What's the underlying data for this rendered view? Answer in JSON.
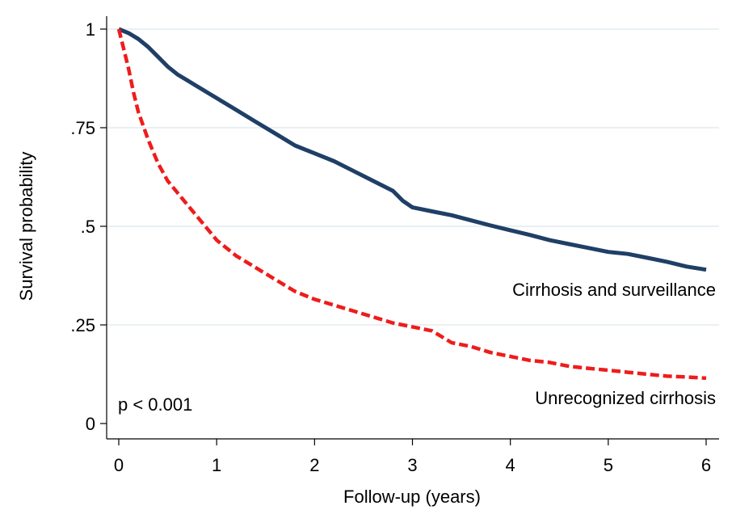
{
  "chart_data": {
    "type": "line",
    "xlabel": "Follow-up (years)",
    "ylabel": "Survival probability",
    "xlim": [
      0,
      6
    ],
    "ylim": [
      0,
      1
    ],
    "xticks": [
      0,
      1,
      2,
      3,
      4,
      5,
      6
    ],
    "xtick_labels": [
      "0",
      "1",
      "2",
      "3",
      "4",
      "5",
      "6"
    ],
    "yticks": [
      0,
      0.25,
      0.5,
      0.75,
      1
    ],
    "ytick_labels": [
      "0",
      ".25",
      ".5",
      ".75",
      "1"
    ],
    "grid": "horizontal",
    "legend": "none",
    "annotations": {
      "p_value": "p < 0.001"
    },
    "series": [
      {
        "name": "Cirrhosis and surveillance",
        "color": "#1f3f66",
        "style": "solid",
        "x": [
          0,
          0.1,
          0.2,
          0.3,
          0.4,
          0.5,
          0.6,
          0.7,
          0.8,
          0.9,
          1.0,
          1.2,
          1.4,
          1.6,
          1.8,
          2.0,
          2.2,
          2.4,
          2.6,
          2.8,
          2.9,
          3.0,
          3.2,
          3.4,
          3.6,
          3.8,
          4.0,
          4.2,
          4.4,
          4.6,
          4.8,
          5.0,
          5.2,
          5.4,
          5.6,
          5.8,
          6.0
        ],
        "y": [
          1.0,
          0.99,
          0.975,
          0.955,
          0.93,
          0.905,
          0.885,
          0.87,
          0.855,
          0.84,
          0.825,
          0.795,
          0.765,
          0.735,
          0.705,
          0.685,
          0.665,
          0.64,
          0.615,
          0.59,
          0.565,
          0.548,
          0.538,
          0.528,
          0.515,
          0.502,
          0.49,
          0.478,
          0.465,
          0.455,
          0.445,
          0.435,
          0.43,
          0.42,
          0.41,
          0.398,
          0.39
        ]
      },
      {
        "name": "Unrecognized cirrhosis",
        "color": "#ee1c1c",
        "style": "dashed",
        "x": [
          0,
          0.05,
          0.1,
          0.15,
          0.2,
          0.3,
          0.4,
          0.5,
          0.6,
          0.7,
          0.8,
          0.9,
          1.0,
          1.2,
          1.4,
          1.6,
          1.8,
          2.0,
          2.2,
          2.4,
          2.6,
          2.8,
          3.0,
          3.2,
          3.4,
          3.6,
          3.8,
          4.0,
          4.2,
          4.4,
          4.6,
          4.8,
          5.0,
          5.2,
          5.4,
          5.6,
          5.8,
          6.0
        ],
        "y": [
          1.0,
          0.95,
          0.9,
          0.84,
          0.79,
          0.72,
          0.66,
          0.615,
          0.585,
          0.555,
          0.525,
          0.495,
          0.465,
          0.425,
          0.395,
          0.365,
          0.335,
          0.315,
          0.3,
          0.285,
          0.27,
          0.255,
          0.245,
          0.235,
          0.205,
          0.195,
          0.18,
          0.17,
          0.16,
          0.155,
          0.145,
          0.14,
          0.135,
          0.13,
          0.125,
          0.12,
          0.118,
          0.115
        ]
      }
    ]
  }
}
